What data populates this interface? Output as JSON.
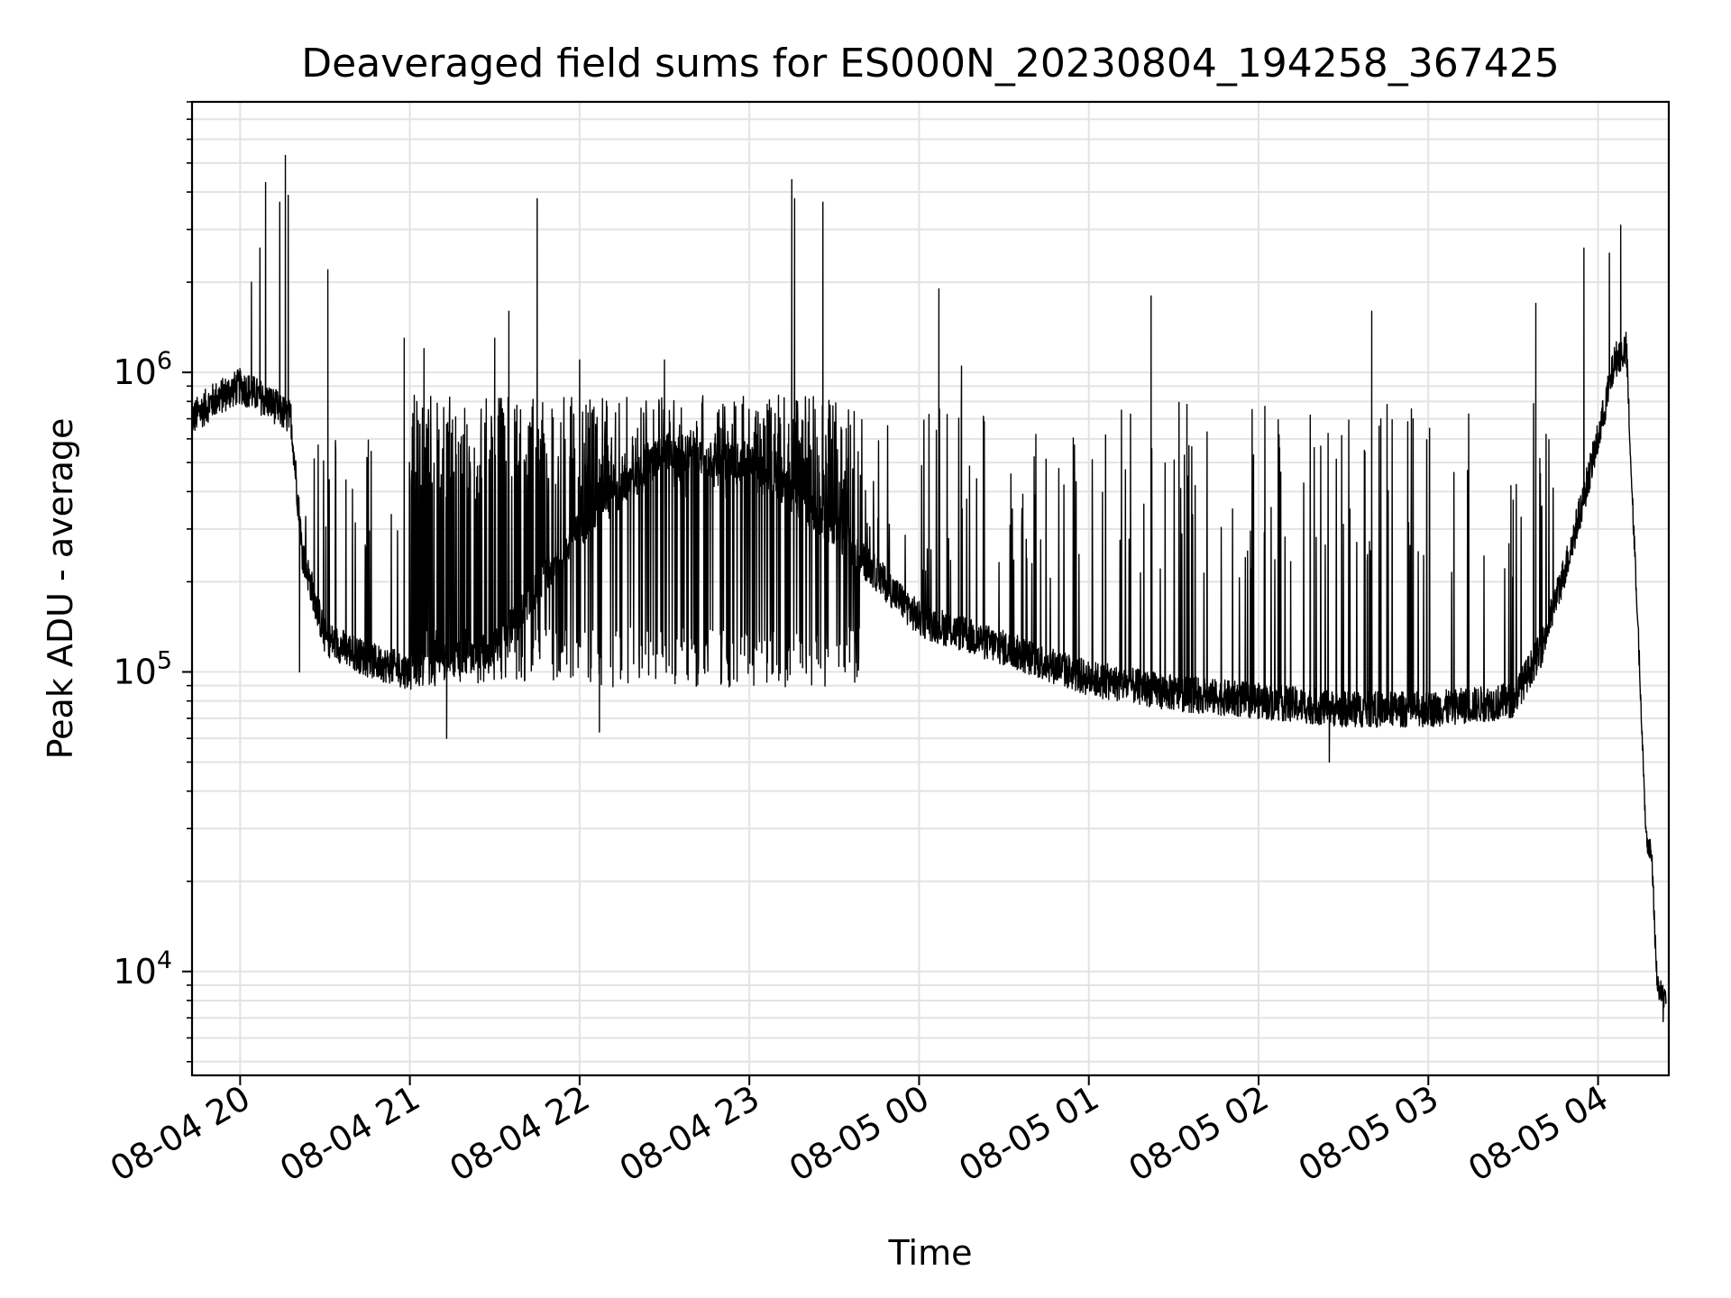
{
  "chart_data": {
    "type": "line",
    "title": "Deaveraged field sums for ES000N_20230804_194258_367425",
    "xlabel": "Time",
    "ylabel": "Peak ADU - average",
    "x_axis": {
      "type": "datetime",
      "range": [
        "2023-08-04 19:43",
        "2023-08-05 04:25"
      ],
      "tick_values": [
        "2023-08-04 20:00",
        "2023-08-04 21:00",
        "2023-08-04 22:00",
        "2023-08-04 23:00",
        "2023-08-05 00:00",
        "2023-08-05 01:00",
        "2023-08-05 02:00",
        "2023-08-05 03:00",
        "2023-08-05 04:00"
      ],
      "tick_labels": [
        "08-04 20",
        "08-04 21",
        "08-04 22",
        "08-04 23",
        "08-05 00",
        "08-05 01",
        "08-05 02",
        "08-05 03",
        "08-05 04"
      ]
    },
    "y_axis": {
      "scale": "log",
      "range": [
        4500,
        8000000
      ],
      "tick_values": [
        10000,
        100000,
        1000000
      ],
      "tick_labels": [
        {
          "base": "10",
          "exp": "4"
        },
        {
          "base": "10",
          "exp": "5"
        },
        {
          "base": "10",
          "exp": "6"
        }
      ]
    },
    "grid": true,
    "series": [
      {
        "color": "#000000",
        "baseline": [
          [
            "2023-08-04 19:43",
            700000
          ],
          [
            "2023-08-04 19:50",
            800000
          ],
          [
            "2023-08-04 20:00",
            900000
          ],
          [
            "2023-08-04 20:10",
            800000
          ],
          [
            "2023-08-04 20:18",
            700000
          ],
          [
            "2023-08-04 20:22",
            250000
          ],
          [
            "2023-08-04 20:30",
            130000
          ],
          [
            "2023-08-04 20:45",
            110000
          ],
          [
            "2023-08-04 21:00",
            100000
          ],
          [
            "2023-08-04 21:30",
            120000
          ],
          [
            "2023-08-04 22:00",
            300000
          ],
          [
            "2023-08-04 22:30",
            550000
          ],
          [
            "2023-08-04 23:00",
            500000
          ],
          [
            "2023-08-04 23:30",
            300000
          ],
          [
            "2023-08-05 00:00",
            150000
          ],
          [
            "2023-08-05 00:30",
            120000
          ],
          [
            "2023-08-05 01:00",
            95000
          ],
          [
            "2023-08-05 01:30",
            85000
          ],
          [
            "2023-08-05 02:00",
            80000
          ],
          [
            "2023-08-05 02:30",
            75000
          ],
          [
            "2023-08-05 03:00",
            75000
          ],
          [
            "2023-08-05 03:30",
            80000
          ],
          [
            "2023-08-05 03:40",
            120000
          ],
          [
            "2023-08-05 03:50",
            250000
          ],
          [
            "2023-08-05 04:00",
            600000
          ],
          [
            "2023-08-05 04:06",
            1100000
          ],
          [
            "2023-08-05 04:10",
            1200000
          ],
          [
            "2023-08-05 04:12",
            400000
          ],
          [
            "2023-08-05 04:14",
            150000
          ],
          [
            "2023-08-05 04:16",
            50000
          ],
          [
            "2023-08-05 04:17",
            28000
          ],
          [
            "2023-08-05 04:19",
            25000
          ],
          [
            "2023-08-05 04:20",
            14000
          ],
          [
            "2023-08-05 04:21",
            9000
          ],
          [
            "2023-08-05 04:24",
            8000
          ]
        ],
        "peaks": [
          [
            "2023-08-04 20:04",
            2000000
          ],
          [
            "2023-08-04 20:07",
            2600000
          ],
          [
            "2023-08-04 20:09",
            4300000
          ],
          [
            "2023-08-04 20:14",
            3700000
          ],
          [
            "2023-08-04 20:16",
            5300000
          ],
          [
            "2023-08-04 20:17",
            3900000
          ],
          [
            "2023-08-04 20:31",
            2200000
          ],
          [
            "2023-08-04 20:58",
            1300000
          ],
          [
            "2023-08-04 21:05",
            1200000
          ],
          [
            "2023-08-04 21:30",
            1300000
          ],
          [
            "2023-08-04 21:35",
            1600000
          ],
          [
            "2023-08-04 21:45",
            3800000
          ],
          [
            "2023-08-04 22:00",
            1100000
          ],
          [
            "2023-08-04 22:30",
            1100000
          ],
          [
            "2023-08-04 23:15",
            4400000
          ],
          [
            "2023-08-04 23:16",
            3800000
          ],
          [
            "2023-08-04 23:26",
            3700000
          ],
          [
            "2023-08-05 00:07",
            1900000
          ],
          [
            "2023-08-05 00:15",
            1050000
          ],
          [
            "2023-08-05 01:22",
            1800000
          ],
          [
            "2023-08-05 02:40",
            1600000
          ],
          [
            "2023-08-05 03:38",
            1700000
          ],
          [
            "2023-08-05 03:55",
            2600000
          ],
          [
            "2023-08-05 04:04",
            2500000
          ],
          [
            "2023-08-05 04:08",
            3100000
          ]
        ],
        "dips": [
          [
            "2023-08-04 20:21",
            100000
          ],
          [
            "2023-08-04 21:13",
            60000
          ],
          [
            "2023-08-04 22:07",
            63000
          ],
          [
            "2023-08-05 02:25",
            50000
          ],
          [
            "2023-08-05 04:23",
            6800
          ]
        ]
      }
    ]
  }
}
